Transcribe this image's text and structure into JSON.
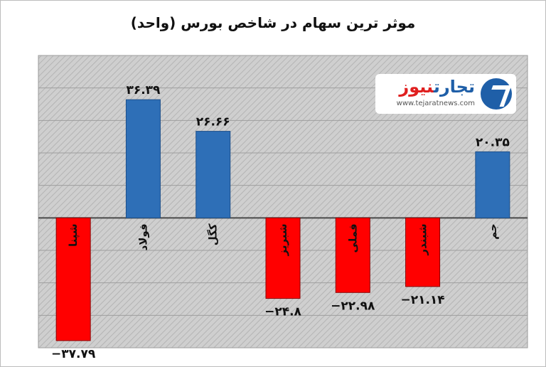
{
  "title": "موثر ترین سهام در شاخص بورس (واحد)",
  "logo": {
    "brand_part1": "تجارت",
    "brand_part2": "نیوز",
    "url": "www.tejaratnews.com"
  },
  "colors": {
    "positive": "#2e6fb7",
    "negative": "#ff0000",
    "plot_bg": "#c8c8c8"
  },
  "chart_data": {
    "type": "bar",
    "title": "موثر ترین سهام در شاخص بورس (واحد)",
    "categories": [
      "شپنا",
      "فولاد",
      "کگل",
      "شبریز",
      "فملی",
      "شبندر",
      "جم"
    ],
    "values": [
      -37.79,
      36.39,
      26.66,
      -24.8,
      -22.98,
      -21.14,
      20.35
    ],
    "data_labels": [
      "−۳۷.۷۹",
      "۳۶.۳۹",
      "۲۶.۶۶",
      "−۲۴.۸",
      "−۲۲.۹۸",
      "−۲۱.۱۴",
      "۲۰.۳۵"
    ],
    "ylim": [
      -40,
      50
    ],
    "grid": true,
    "legend": "none"
  }
}
